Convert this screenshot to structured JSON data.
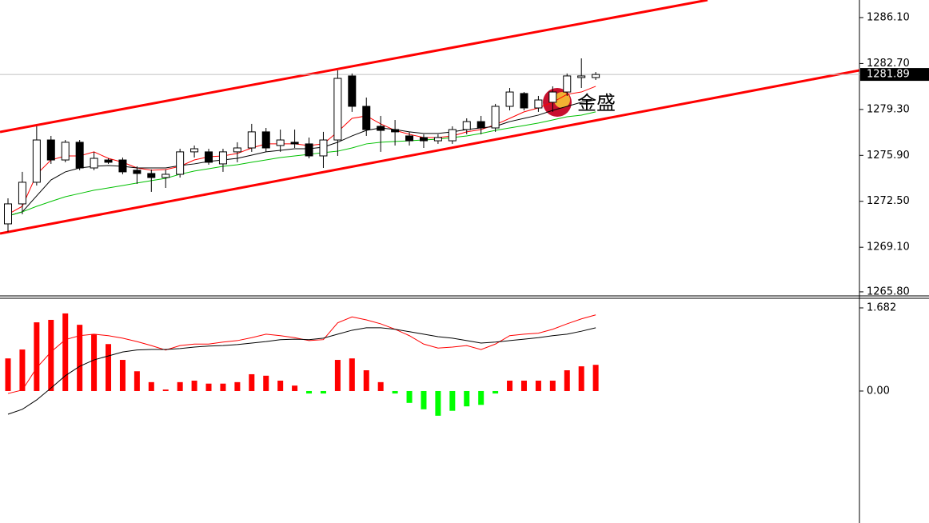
{
  "chart_data": [
    {
      "type": "candlestick",
      "open": [
        1270.83,
        1272.31,
        1273.91,
        1277.04,
        1275.56,
        1276.87,
        1274.97,
        1275.56,
        1275.56,
        1274.8,
        1274.56,
        1274.26,
        1274.5,
        1276.16,
        1276.16,
        1275.27,
        1276.16,
        1276.45,
        1277.64,
        1276.63,
        1276.87,
        1276.75,
        1275.86,
        1277.04,
        1281.78,
        1279.53,
        1278.05,
        1277.81,
        1277.34,
        1277.22,
        1276.98,
        1276.98,
        1277.81,
        1278.4,
        1277.93,
        1279.53,
        1280.48,
        1279.41,
        1279.83,
        1280.59,
        1281.66,
        1281.66
      ],
      "high": [
        1272.72,
        1274.68,
        1278.05,
        1277.34,
        1277.04,
        1277.04,
        1276.16,
        1275.68,
        1275.74,
        1275.09,
        1274.85,
        1274.85,
        1276.39,
        1276.63,
        1276.39,
        1276.39,
        1276.87,
        1278.23,
        1277.93,
        1277.81,
        1277.81,
        1277.22,
        1277.64,
        1282.19,
        1281.96,
        1280.18,
        1278.82,
        1278.52,
        1277.64,
        1277.46,
        1277.46,
        1278.05,
        1278.64,
        1278.82,
        1279.71,
        1280.89,
        1280.59,
        1280.3,
        1281.01,
        1281.96,
        1283.08,
        1282.07
      ],
      "low": [
        1270.24,
        1271.54,
        1273.67,
        1275.27,
        1275.39,
        1274.8,
        1274.8,
        1275.27,
        1274.5,
        1273.79,
        1273.2,
        1273.49,
        1274.26,
        1275.74,
        1275.21,
        1274.68,
        1275.39,
        1276.16,
        1276.16,
        1276.16,
        1276.45,
        1275.68,
        1274.97,
        1275.86,
        1279.12,
        1277.34,
        1276.16,
        1276.63,
        1276.63,
        1276.45,
        1276.75,
        1276.75,
        1277.46,
        1277.46,
        1277.64,
        1279.23,
        1279.23,
        1279.12,
        1279.12,
        1280.3,
        1280.89,
        1281.48
      ],
      "close": [
        1272.31,
        1273.91,
        1277.04,
        1275.56,
        1276.87,
        1274.97,
        1275.68,
        1275.39,
        1274.68,
        1274.56,
        1274.26,
        1274.5,
        1276.16,
        1276.39,
        1275.39,
        1276.16,
        1276.45,
        1277.64,
        1276.45,
        1277.04,
        1276.75,
        1275.86,
        1277.04,
        1281.6,
        1279.53,
        1277.81,
        1277.75,
        1277.64,
        1276.98,
        1276.98,
        1277.22,
        1277.81,
        1278.4,
        1277.93,
        1279.53,
        1280.59,
        1279.41,
        1280.0,
        1280.59,
        1281.78,
        1281.78,
        1281.89
      ],
      "up_color": "#ffffff",
      "down_color": "#000000",
      "series": [
        {
          "color": "#ff0000",
          "values": [
            1271.54,
            1272.13,
            1274.5,
            1275.56,
            1275.86,
            1275.86,
            1276.16,
            1275.68,
            1275.39,
            1274.97,
            1274.8,
            1274.85,
            1275.09,
            1275.56,
            1275.8,
            1275.86,
            1276.04,
            1276.45,
            1276.75,
            1276.75,
            1276.75,
            1276.63,
            1276.75,
            1277.64,
            1278.64,
            1278.82,
            1278.23,
            1277.75,
            1277.46,
            1277.22,
            1277.22,
            1277.34,
            1277.64,
            1277.81,
            1278.17,
            1278.64,
            1279.12,
            1279.41,
            1279.83,
            1280.42,
            1280.59,
            1281.01
          ]
        },
        {
          "color": "#000000",
          "values": [
            1271.42,
            1271.72,
            1272.9,
            1274.08,
            1274.68,
            1274.97,
            1275.09,
            1275.15,
            1275.09,
            1274.97,
            1274.97,
            1274.97,
            1275.15,
            1275.27,
            1275.45,
            1275.56,
            1275.68,
            1275.92,
            1276.16,
            1276.27,
            1276.39,
            1276.39,
            1276.51,
            1276.87,
            1277.34,
            1277.75,
            1277.93,
            1277.81,
            1277.64,
            1277.52,
            1277.52,
            1277.64,
            1277.81,
            1277.93,
            1278.05,
            1278.4,
            1278.64,
            1278.88,
            1279.23,
            1279.53,
            1279.83,
            1280.0
          ]
        },
        {
          "color": "#00c000",
          "values": [
            1271.42,
            1271.72,
            1272.13,
            1272.49,
            1272.84,
            1273.08,
            1273.32,
            1273.49,
            1273.67,
            1273.85,
            1274.03,
            1274.2,
            1274.5,
            1274.74,
            1274.91,
            1275.09,
            1275.21,
            1275.39,
            1275.56,
            1275.74,
            1275.86,
            1275.98,
            1276.1,
            1276.21,
            1276.45,
            1276.75,
            1276.87,
            1276.93,
            1276.98,
            1277.04,
            1277.1,
            1277.22,
            1277.34,
            1277.52,
            1277.75,
            1277.93,
            1278.11,
            1278.29,
            1278.52,
            1278.76,
            1278.88,
            1279.12
          ]
        }
      ],
      "last_price": 1281.89,
      "watermark": "金盛",
      "ylim": [
        1265.5,
        1287.4
      ],
      "yticks": [
        {
          "value": 1286.1,
          "label": "1286.10"
        },
        {
          "value": 1282.7,
          "label": "1282.70"
        },
        {
          "value": 1279.3,
          "label": "1279.30"
        },
        {
          "value": 1275.9,
          "label": "1275.90"
        },
        {
          "value": 1272.5,
          "label": "1272.50"
        },
        {
          "value": 1269.1,
          "label": "1269.10"
        },
        {
          "value": 1265.8,
          "label": "1265.80"
        }
      ]
    },
    {
      "type": "macd",
      "histogram": {
        "color": "#ff0000",
        "negative_color": "#00ff00",
        "values": [
          0.66,
          0.84,
          1.39,
          1.44,
          1.57,
          1.34,
          1.15,
          0.95,
          0.63,
          0.4,
          0.18,
          0.03,
          0.18,
          0.21,
          0.15,
          0.15,
          0.18,
          0.34,
          0.31,
          0.21,
          0.11,
          -0.05,
          -0.05,
          0.63,
          0.66,
          0.42,
          0.18,
          -0.05,
          -0.24,
          -0.37,
          -0.5,
          -0.4,
          -0.31,
          -0.28,
          -0.05,
          0.21,
          0.21,
          0.21,
          0.21,
          0.42,
          0.5,
          0.53
        ]
      },
      "series": [
        {
          "color": "#ff0000",
          "values": [
            -0.05,
            0.02,
            0.47,
            0.79,
            1.04,
            1.12,
            1.15,
            1.12,
            1.07,
            1.0,
            0.92,
            0.83,
            0.92,
            0.95,
            0.95,
            0.99,
            1.02,
            1.08,
            1.15,
            1.12,
            1.08,
            1.02,
            1.04,
            1.38,
            1.5,
            1.44,
            1.36,
            1.25,
            1.12,
            0.95,
            0.87,
            0.89,
            0.92,
            0.84,
            0.95,
            1.12,
            1.15,
            1.17,
            1.25,
            1.36,
            1.46,
            1.54
          ]
        },
        {
          "color": "#000000",
          "values": [
            -0.47,
            -0.37,
            -0.18,
            0.06,
            0.31,
            0.5,
            0.63,
            0.71,
            0.79,
            0.83,
            0.84,
            0.84,
            0.86,
            0.89,
            0.91,
            0.92,
            0.94,
            0.97,
            1.0,
            1.04,
            1.05,
            1.04,
            1.07,
            1.15,
            1.23,
            1.28,
            1.28,
            1.25,
            1.2,
            1.15,
            1.1,
            1.07,
            1.02,
            0.97,
            0.99,
            1.02,
            1.05,
            1.08,
            1.12,
            1.15,
            1.21,
            1.28
          ]
        }
      ],
      "ylim": [
        -2.67,
        1.844
      ],
      "yticks": [
        1.682,
        {
          "value": 0,
          "label": "0.00"
        }
      ]
    }
  ]
}
